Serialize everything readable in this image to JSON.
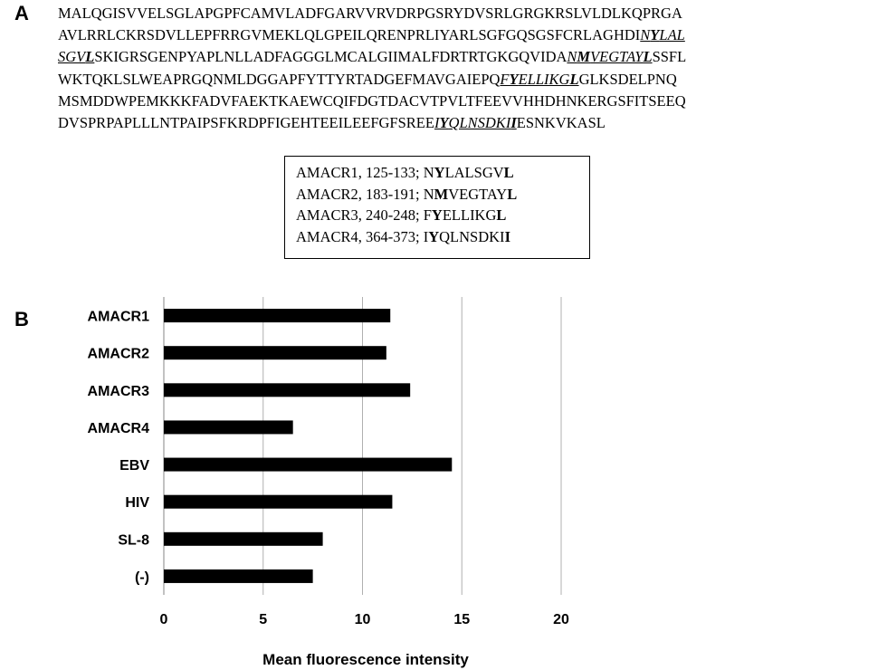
{
  "panel_a": {
    "letter": "A",
    "sequence_lines": [
      [
        {
          "t": "MALQGISVVELSGLAPGPFCAMVLADFGARVVRVDRPGSRYDVSRLGRGKRSLVLDLKQPRGA"
        }
      ],
      [
        {
          "t": "AVLRRLCKRSDVLLEPFRRGVMEKLQLGPEILQRENPRLIYARLSGFGQSGSFCRLAGHDI"
        },
        {
          "t": "N",
          "ep": true
        },
        {
          "t": "Y",
          "ep": true,
          "b": true
        },
        {
          "t": "LAL",
          "ep": true
        }
      ],
      [
        {
          "t": "SGV",
          "ep": true
        },
        {
          "t": "L",
          "ep": true,
          "b": true
        },
        {
          "t": "SKIGRSGENPYAPLNLLADFAGGGLMCALGIIMALFDRTRTGKGQVIDA"
        },
        {
          "t": "N",
          "ep": true
        },
        {
          "t": "M",
          "ep": true,
          "b": true
        },
        {
          "t": "VEGTAY",
          "ep": true
        },
        {
          "t": "L",
          "ep": true,
          "b": true
        },
        {
          "t": "SSFL"
        }
      ],
      [
        {
          "t": "WKTQKLSLWEAPRGQNMLDGGAPFYTTYRTADGEFMAVGAIEPQ"
        },
        {
          "t": "F",
          "ep": true
        },
        {
          "t": "Y",
          "ep": true,
          "b": true
        },
        {
          "t": "ELLIKG",
          "ep": true
        },
        {
          "t": "L",
          "ep": true,
          "b": true
        },
        {
          "t": "GLKSDELPNQ"
        }
      ],
      [
        {
          "t": "MSMDDWPEMKKKFADVFAEKTKAEWCQIFDGTDACVTPVLTFEEVVHHDHNKERGSFITSEEQ"
        }
      ],
      [
        {
          "t": "DVSPRPAPLLLNTPAIPSFKRDPFIGEHTEEILEEFGFSREE"
        },
        {
          "t": "I",
          "ep": true
        },
        {
          "t": "Y",
          "ep": true,
          "b": true
        },
        {
          "t": "QLNSDKI",
          "ep": true
        },
        {
          "t": "I",
          "ep": true,
          "b": true
        },
        {
          "t": "ESNKVKASL"
        }
      ]
    ],
    "epitope_legend": [
      [
        {
          "t": "AMACR1, 125-133; N"
        },
        {
          "t": "Y",
          "b": true
        },
        {
          "t": "LALSGV"
        },
        {
          "t": "L",
          "b": true
        }
      ],
      [
        {
          "t": "AMACR2, 183-191; N"
        },
        {
          "t": "M",
          "b": true
        },
        {
          "t": "VEGTAY"
        },
        {
          "t": "L",
          "b": true
        }
      ],
      [
        {
          "t": "AMACR3, 240-248; F"
        },
        {
          "t": "Y",
          "b": true
        },
        {
          "t": "ELLIKG"
        },
        {
          "t": "L",
          "b": true
        }
      ],
      [
        {
          "t": "AMACR4, 364-373; I"
        },
        {
          "t": "Y",
          "b": true
        },
        {
          "t": "QLNSDKI"
        },
        {
          "t": "I",
          "b": true
        }
      ]
    ]
  },
  "panel_b": {
    "letter": "B"
  },
  "chart_data": {
    "type": "bar",
    "orientation": "horizontal",
    "categories": [
      "AMACR1",
      "AMACR2",
      "AMACR3",
      "AMACR4",
      "EBV",
      "HIV",
      "SL-8",
      "(-)"
    ],
    "values": [
      11.4,
      11.2,
      12.4,
      6.5,
      14.5,
      11.5,
      8.0,
      7.5
    ],
    "xlabel": "Mean fluorescence intensity",
    "ylabel": "",
    "title": "",
    "xlim": [
      0,
      20
    ],
    "xticks": [
      0,
      5,
      10,
      15,
      20
    ],
    "grid": true,
    "bar_color": "#000000",
    "grid_color": "#b0b0b0"
  }
}
